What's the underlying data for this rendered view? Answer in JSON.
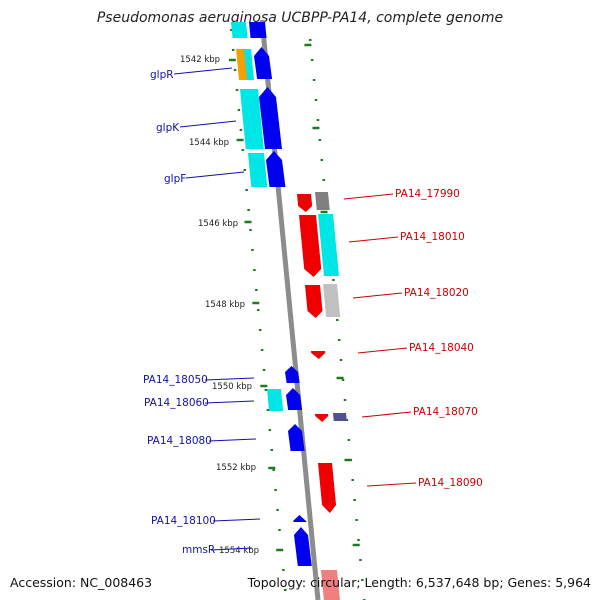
{
  "title": "Pseudomonas aeruginosa UCBPP-PA14, complete genome",
  "footer": {
    "accession_label": "Accession:",
    "accession": "NC_008463",
    "topology_label": "Topology:",
    "topology": "circular",
    "length_label": "Length:",
    "length": "6,537,648 bp",
    "genes_label": "Genes:",
    "genes": "5,964"
  },
  "colors": {
    "backbone": "#8c8c8c",
    "tick": "#1f7a1f",
    "forward_gene": "#0000ee",
    "reverse_gene": "#ee0000",
    "cds_forward_block": "#00e5e5",
    "cds_reverse_block": "#00e5e5",
    "orange_block": "#f5a000",
    "gray_block": "#808080",
    "light_gray_block": "#c0c0c0",
    "navy_block": "#505090",
    "label_forward": "#1010b0",
    "label_reverse": "#cc0000"
  },
  "scale_labels": [
    "1542 kbp",
    "1544 kbp",
    "1546 kbp",
    "1548 kbp",
    "1550 kbp",
    "1552 kbp",
    "1554 kbp"
  ],
  "gene_labels_left": [
    "glpR",
    "glpK",
    "glpF",
    "PA14_18050",
    "PA14_18060",
    "PA14_18080",
    "PA14_18100",
    "mmsR"
  ],
  "gene_labels_right": [
    "PA14_17990",
    "PA14_18010",
    "PA14_18020",
    "PA14_18040",
    "PA14_18070",
    "PA14_18090"
  ]
}
